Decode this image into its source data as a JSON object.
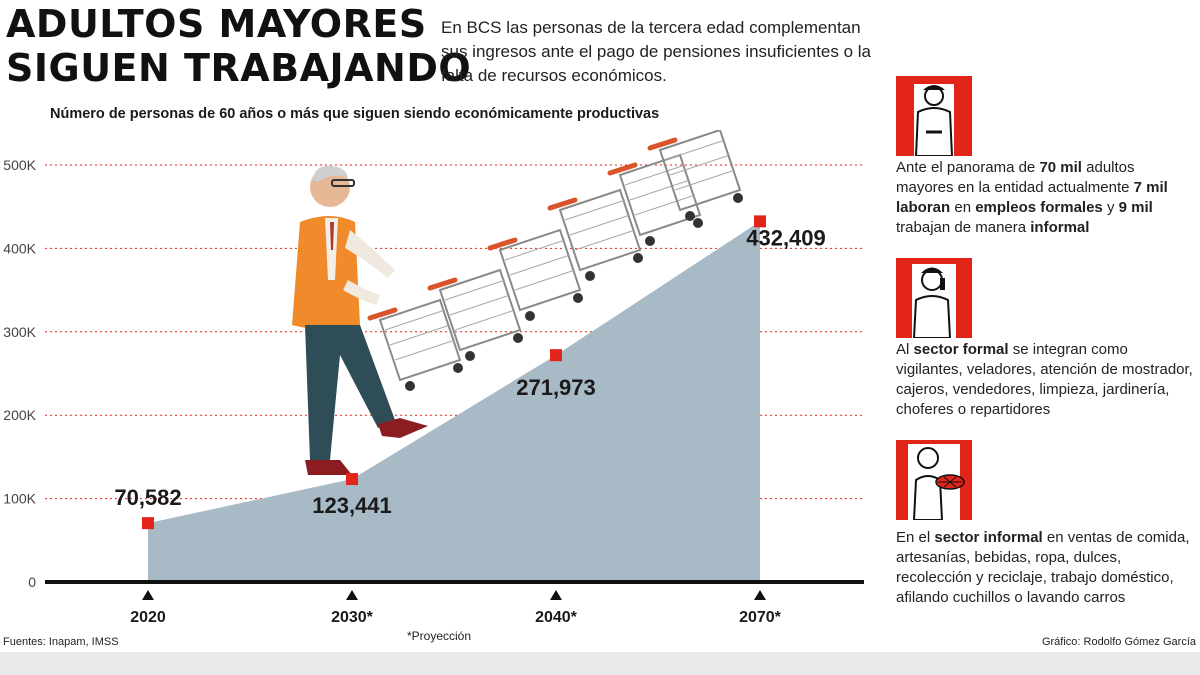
{
  "header": {
    "title_line1": "ADULTOS MAYORES",
    "title_line2": "SIGUEN TRABAJANDO",
    "intro": "En BCS las personas de la tercera edad complementan sus ingresos ante el pago de pensiones insuficientes o la falta de recursos económicos.",
    "subtitle": "Número de personas de 60 años o más que siguen siendo económicamente productivas"
  },
  "chart_data": {
    "type": "area",
    "categories": [
      "2020",
      "2030*",
      "2040*",
      "2070*"
    ],
    "values": [
      70582,
      123441,
      271973,
      432409
    ],
    "data_labels": [
      "70,582",
      "123,441",
      "271,973",
      "432,409"
    ],
    "yticks": [
      "0",
      "100K",
      "200K",
      "300K",
      "400K",
      "500K"
    ],
    "ylim": [
      0,
      500000
    ],
    "grid": true,
    "colors": {
      "area": "#a9bac7",
      "marker": "#e3241b",
      "grid": "#e3241b",
      "axis": "#111111"
    }
  },
  "sidebar": {
    "note1": {
      "t1": "Ante el panorama de ",
      "b1": "70 mil",
      "t2": " adultos mayores en la entidad actualmente ",
      "b2": "7 mil laboran",
      "t3": " en ",
      "b3": "empleos formales",
      "t4": " y ",
      "b4": "9 mil",
      "t5": " trabajan de manera ",
      "b5": "informal"
    },
    "note2": {
      "t1": "Al ",
      "b1": "sector formal",
      "t2": " se integran como vigilantes, veladores, atención de mostrador, cajeros, vendedores, limpieza, jardinería, choferes o repartidores"
    },
    "note3": {
      "t1": "En el ",
      "b1": "sector informal",
      "t2": " en ventas de comida, artesanías, bebidas, ropa, dulces, recolección y reciclaje, trabajo doméstico, afilando cuchillos o lavando carros"
    },
    "icons": [
      "security-guard-icon",
      "worker-on-phone-icon",
      "food-vendor-icon"
    ]
  },
  "footer": {
    "sources": "Fuentes: Inapam, IMSS",
    "projection_note": "*Proyección",
    "credit": "Gráfico: Rodolfo Gómez García"
  }
}
